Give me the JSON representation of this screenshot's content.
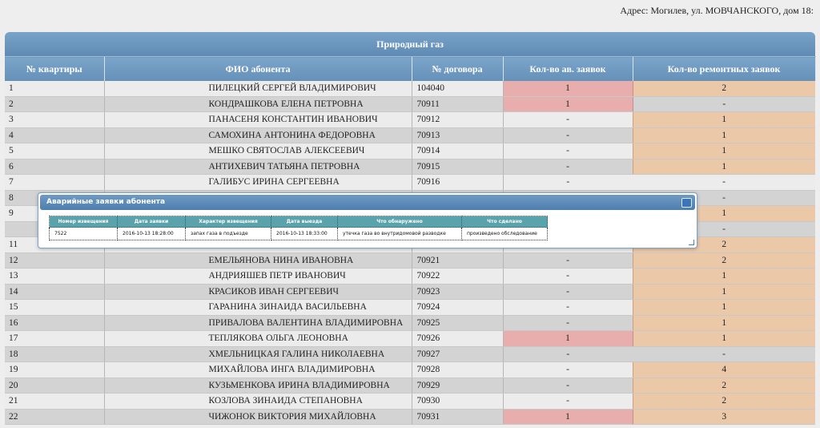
{
  "address": "Адрес: Могилев, ул. МОВЧАНСКОГО, дом 18:",
  "table": {
    "title": "Природный газ",
    "headers": [
      "№ квартиры",
      "ФИО абонента",
      "№ договора",
      "Кол-во ав. заявок",
      "Кол-во ремонтных заявок"
    ],
    "rows": [
      {
        "apt": "1",
        "name": "ПИЛЕЦКИЙ СЕРГЕЙ ВЛАДИМИРОВИЧ",
        "contract": "104040",
        "emergency": "1",
        "repair": "2"
      },
      {
        "apt": "2",
        "name": "КОНДРАШКОВА ЕЛЕНА ПЕТРОВНА",
        "contract": "70911",
        "emergency": "1",
        "repair": "-"
      },
      {
        "apt": "3",
        "name": "ПАНАСЕНЯ КОНСТАНТИН ИВАНОВИЧ",
        "contract": "70912",
        "emergency": "-",
        "repair": "1"
      },
      {
        "apt": "4",
        "name": "САМОХИНА АНТОНИНА ФЕДОРОВНА",
        "contract": "70913",
        "emergency": "-",
        "repair": "1"
      },
      {
        "apt": "5",
        "name": "МЕШКО СВЯТОСЛАВ АЛЕКСЕЕВИЧ",
        "contract": "70914",
        "emergency": "-",
        "repair": "1"
      },
      {
        "apt": "6",
        "name": "АНТИХЕВИЧ ТАТЬЯНА ПЕТРОВНА",
        "contract": "70915",
        "emergency": "-",
        "repair": "1"
      },
      {
        "apt": "7",
        "name": "ГАЛИБУС ИРИНА СЕРГЕЕВНА",
        "contract": "70916",
        "emergency": "-",
        "repair": "-"
      },
      {
        "apt": "8",
        "name": "",
        "contract": "",
        "emergency": "",
        "repair": "-"
      },
      {
        "apt": "9",
        "name": "",
        "contract": "",
        "emergency": "",
        "repair": "1"
      },
      {
        "apt": "",
        "name": "",
        "contract": "",
        "emergency": "",
        "repair": "-"
      },
      {
        "apt": "11",
        "name": "",
        "contract": "",
        "emergency": "",
        "repair": "2"
      },
      {
        "apt": "12",
        "name": "ЕМЕЛЬЯНОВА НИНА ИВАНОВНА",
        "contract": "70921",
        "emergency": "-",
        "repair": "2"
      },
      {
        "apt": "13",
        "name": "АНДРИЯШЕВ ПЕТР ИВАНОВИЧ",
        "contract": "70922",
        "emergency": "-",
        "repair": "1"
      },
      {
        "apt": "14",
        "name": "КРАСИКОВ ИВАН СЕРГЕЕВИЧ",
        "contract": "70923",
        "emergency": "-",
        "repair": "1"
      },
      {
        "apt": "15",
        "name": "ГАРАНИНА ЗИНАИДА ВАСИЛЬЕВНА",
        "contract": "70924",
        "emergency": "-",
        "repair": "1"
      },
      {
        "apt": "16",
        "name": "ПРИВАЛОВА ВАЛЕНТИНА ВЛАДИМИРОВНА",
        "contract": "70925",
        "emergency": "-",
        "repair": "1"
      },
      {
        "apt": "17",
        "name": "ТЕПЛЯКОВА ОЛЬГА ЛЕОНОВНА",
        "contract": "70926",
        "emergency": "1",
        "repair": "1"
      },
      {
        "apt": "18",
        "name": "ХМЕЛЬНИЦКАЯ ГАЛИНА НИКОЛАЕВНА",
        "contract": "70927",
        "emergency": "-",
        "repair": "-"
      },
      {
        "apt": "19",
        "name": "МИХАЙЛОВА ИНГА ВЛАДИМИРОВНА",
        "contract": "70928",
        "emergency": "-",
        "repair": "4"
      },
      {
        "apt": "20",
        "name": "КУЗЬМЕНКОВА ИРИНА ВЛАДИМИРОВНА",
        "contract": "70929",
        "emergency": "-",
        "repair": "2"
      },
      {
        "apt": "21",
        "name": "КОЗЛОВА ЗИНАИДА СТЕПАНОВНА",
        "contract": "70930",
        "emergency": "-",
        "repair": "2"
      },
      {
        "apt": "22",
        "name": "ЧИЖОНОК ВИКТОРИЯ МИХАЙЛОВНА",
        "contract": "70931",
        "emergency": "1",
        "repair": "3"
      }
    ]
  },
  "popup": {
    "title": "Аварийные заявки абонента",
    "headers": [
      "Номер извещения",
      "Дата заявки",
      "Характер извещения",
      "Дата выезда",
      "Что обнаружено",
      "Что сделано"
    ],
    "rows": [
      [
        "7522",
        "2016-10-13 18:28:00",
        "запах газа в подъезде",
        "2016-10-13 18:33:00",
        "утечка газа во внутридомовой разводке",
        "произведено обследование"
      ]
    ]
  },
  "colors": {
    "header_blue": "#6590b8",
    "emergency_highlight": "#e8aeae",
    "repair_highlight": "#ebc8a8",
    "popup_header_teal": "#5aa3ad"
  }
}
